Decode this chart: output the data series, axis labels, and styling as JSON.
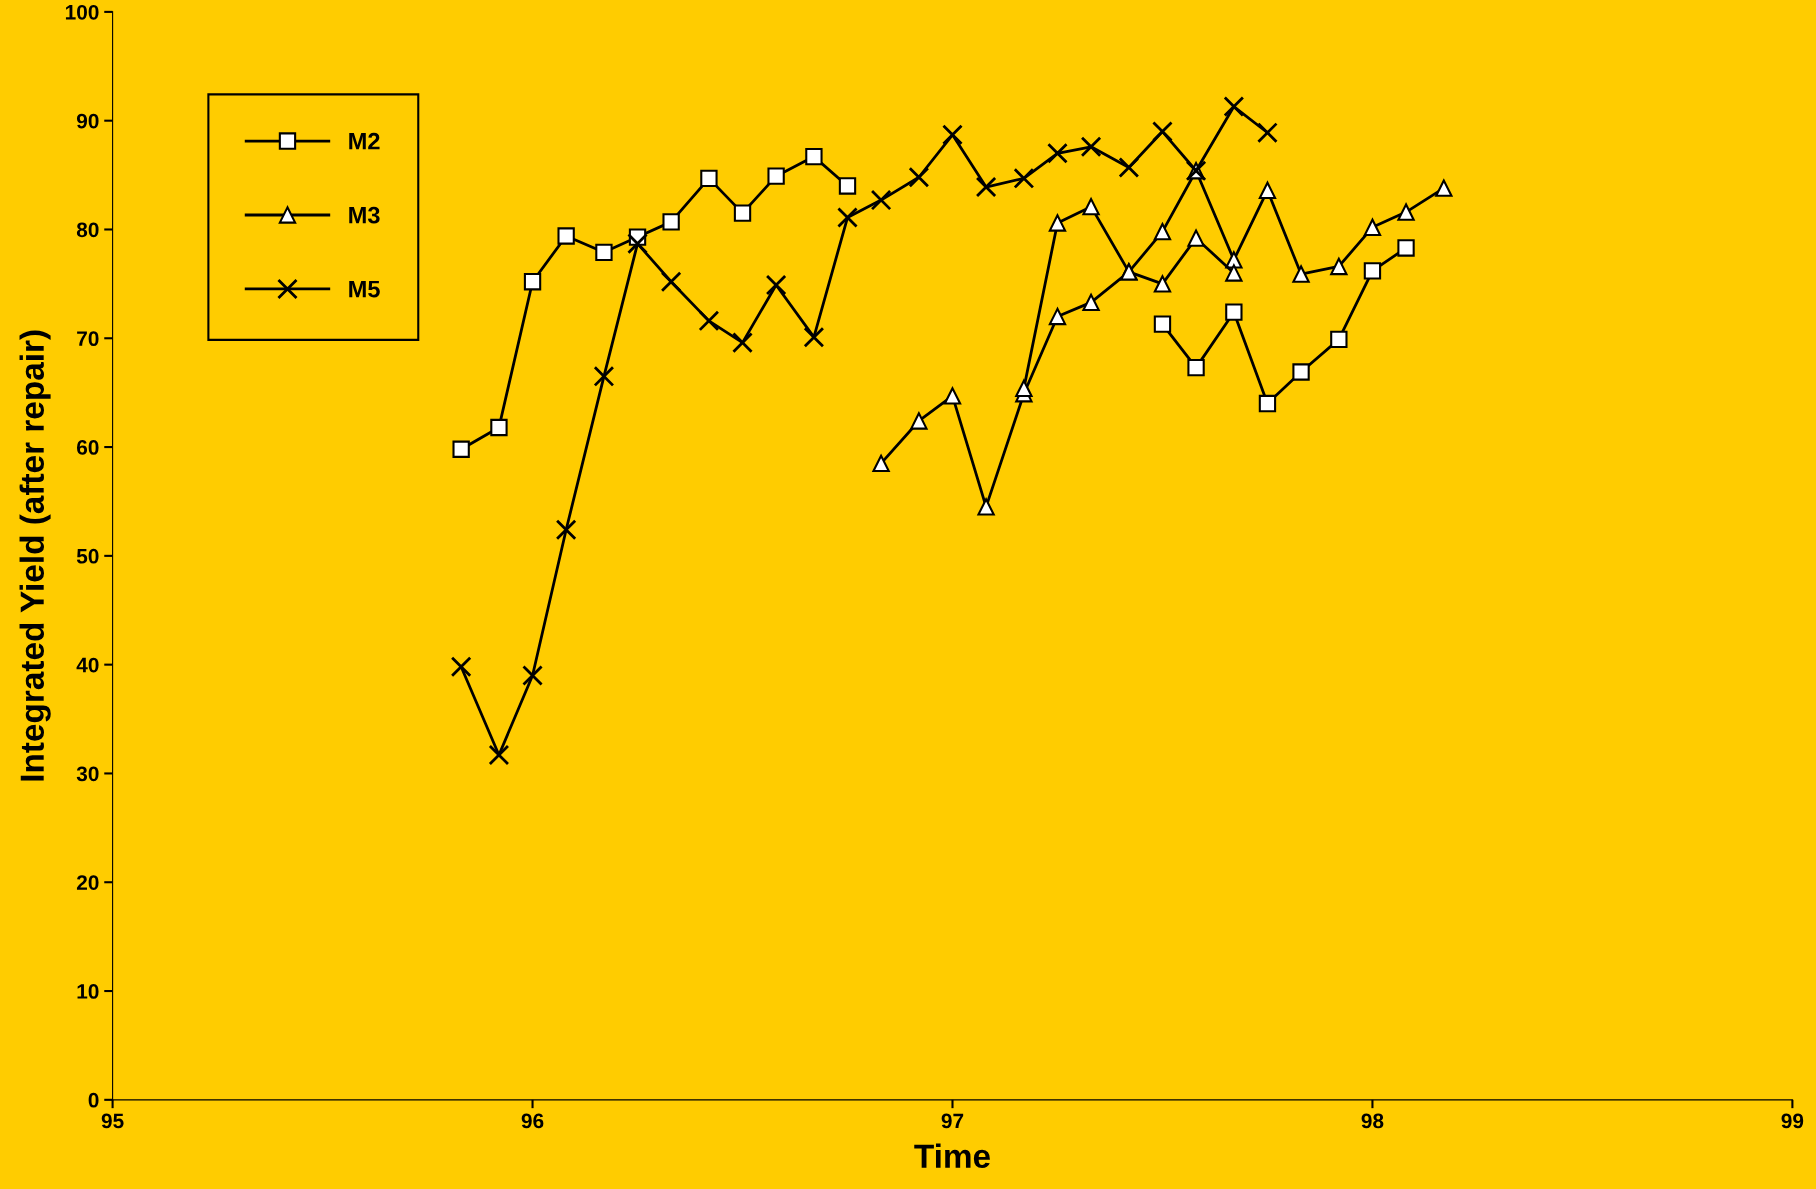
{
  "chart_data": {
    "type": "line",
    "xlabel": "Time",
    "ylabel": "Integrated Yield (after repair)",
    "xlim": [
      95,
      99
    ],
    "xticks": [
      95,
      96,
      97,
      98,
      99
    ],
    "ylim": [
      0,
      100
    ],
    "yticks": [
      0,
      10,
      20,
      30,
      40,
      50,
      60,
      70,
      80,
      90,
      100
    ],
    "grid": false,
    "legend": "top left",
    "line_style": "solid",
    "series": [
      {
        "name": "M2",
        "color": "#000000",
        "marker": "square",
        "x": [
          95.83,
          95.92,
          96.0,
          96.08,
          96.17,
          96.25,
          96.33,
          96.42,
          96.5,
          96.58,
          96.67,
          96.75,
          96.83,
          96.92,
          97.0,
          97.08,
          97.17,
          97.25,
          97.33,
          97.42,
          97.5,
          97.58,
          97.67,
          97.75,
          97.83,
          97.92,
          98.0,
          98.08
        ],
        "values": [
          59.8,
          61.8,
          75.2,
          79.4,
          77.9,
          79.3,
          80.7,
          84.7,
          81.5,
          84.9,
          86.7,
          84.0,
          null,
          null,
          null,
          null,
          null,
          null,
          null,
          null,
          71.3,
          67.3,
          72.4,
          64.0,
          66.9,
          69.9,
          76.2,
          78.3
        ]
      },
      {
        "name": "M3",
        "color": "#000000",
        "marker": "triangle",
        "x": [
          96.83,
          96.92,
          97.0,
          97.08,
          97.17,
          97.25,
          97.33,
          97.42,
          97.5,
          97.58,
          97.67,
          97.75,
          97.83,
          97.92,
          98.0,
          98.08,
          98.17
        ],
        "values": [
          58.5,
          62.4,
          64.7,
          54.5,
          64.9,
          72.0,
          73.3,
          76.1,
          79.8,
          85.4,
          77.2,
          83.6,
          75.9,
          76.6,
          80.2,
          81.6,
          83.8
        ]
      },
      {
        "name": "M5",
        "color": "#000000",
        "marker": "cross",
        "x": [
          95.83,
          95.92,
          96.0,
          96.08,
          96.17,
          96.25,
          96.33,
          96.42,
          96.5,
          96.58,
          96.67,
          96.75,
          96.83,
          96.92,
          97.0,
          97.08,
          97.17,
          97.25,
          97.33,
          97.42,
          97.5,
          97.58,
          97.67,
          97.75
        ],
        "values": [
          39.8,
          31.7,
          39.0,
          52.4,
          66.5,
          78.7,
          75.2,
          71.6,
          69.6,
          74.9,
          70.1,
          81.1,
          82.7,
          84.8,
          88.7,
          83.9,
          84.7,
          87.0,
          87.6,
          85.7,
          89.0,
          85.4,
          91.3,
          88.9
        ]
      },
      {
        "color": "#000000",
        "marker": "triangle",
        "x": [
          97.17,
          97.25,
          97.33,
          97.42,
          97.5,
          97.58,
          97.67
        ],
        "values": [
          65.4,
          80.6,
          82.1,
          76.1,
          75.0,
          79.2,
          76.0
        ]
      }
    ]
  }
}
